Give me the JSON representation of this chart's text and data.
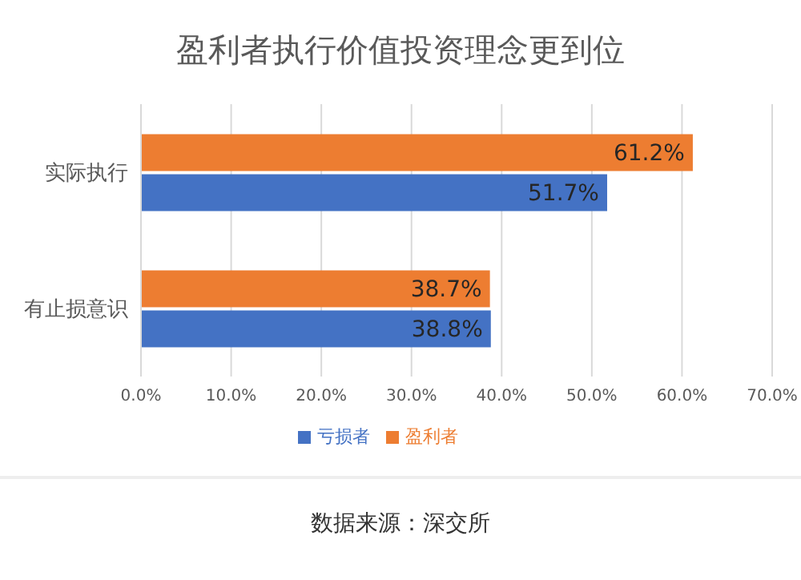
{
  "chart_data": {
    "type": "bar",
    "orientation": "horizontal",
    "title": "盈利者执行价值投资理念更到位",
    "categories": [
      "实际执行",
      "有止损意识"
    ],
    "series": [
      {
        "name": "盈利者",
        "color": "#ed7d31",
        "values": [
          61.2,
          38.7
        ],
        "value_labels": [
          "61.2%",
          "38.7%"
        ]
      },
      {
        "name": "亏损者",
        "color": "#4472c4",
        "values": [
          51.7,
          38.8
        ],
        "value_labels": [
          "51.7%",
          "38.8%"
        ]
      }
    ],
    "xlim": [
      0,
      70
    ],
    "xticks": [
      {
        "value": 0,
        "label": "0.0%"
      },
      {
        "value": 10,
        "label": "10.0%"
      },
      {
        "value": 20,
        "label": "20.0%"
      },
      {
        "value": 30,
        "label": "30.0%"
      },
      {
        "value": 40,
        "label": "40.0%"
      },
      {
        "value": 50,
        "label": "50.0%"
      },
      {
        "value": 60,
        "label": "60.0%"
      },
      {
        "value": 70,
        "label": "70.0%"
      }
    ],
    "grid": "x",
    "legend": "bottom",
    "annotations": [
      "数据来源：深交所"
    ]
  }
}
